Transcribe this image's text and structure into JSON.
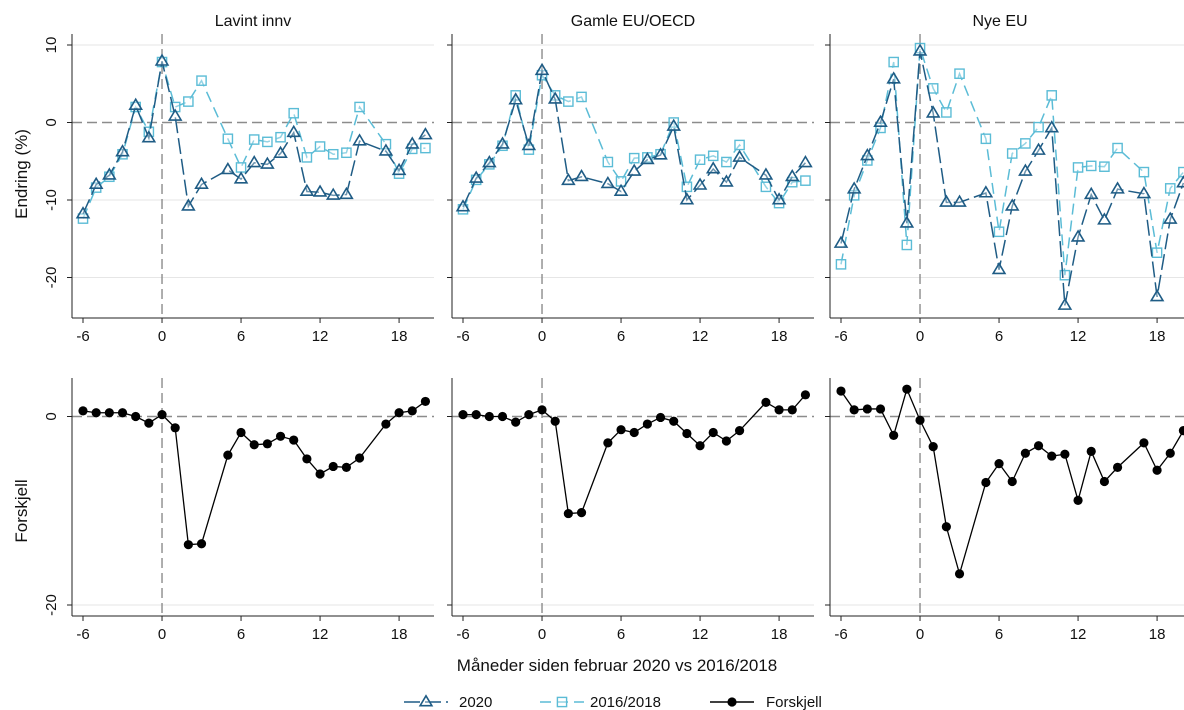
{
  "chart_data": {
    "type": "line",
    "xlabel": "Måneder siden februar 2020 vs 2016/2018",
    "top_ylabel": "Endring (%)",
    "bottom_ylabel": "Forskjell",
    "x_ticks": [
      "-6",
      "0",
      "6",
      "12",
      "18"
    ],
    "top_yticks": [
      {
        "value": 10,
        "label": "10"
      },
      {
        "value": 0,
        "label": "0"
      },
      {
        "value": -10,
        "label": "-10"
      },
      {
        "value": -20,
        "label": "-20"
      }
    ],
    "bottom_yticks": [
      {
        "value": 0,
        "label": "0"
      },
      {
        "value": -20,
        "label": "-20"
      }
    ],
    "top_ylim": [
      -25,
      11
    ],
    "bottom_ylim": [
      -21,
      4
    ],
    "xlim": [
      -7,
      21
    ],
    "grid": true,
    "legend_position": "bottom",
    "legend": [
      {
        "label": "2020",
        "key": "s2020"
      },
      {
        "label": "2016/2018",
        "key": "s1618"
      },
      {
        "label": "Forskjell",
        "key": "diff"
      }
    ],
    "colors": {
      "s2020": "#1f5c85",
      "s1618": "#5bbcd6",
      "diff": "#000000",
      "grid": "#e6e6e6",
      "refline": "#8c8c8c"
    },
    "panels": [
      {
        "title": "Lavint innv",
        "s2020": {
          "x": [
            -6,
            -5,
            -4,
            -3,
            -2,
            -1,
            0,
            1,
            2,
            3,
            5,
            6,
            7,
            8,
            9,
            10,
            11,
            12,
            13,
            14,
            15,
            17,
            18,
            19,
            20
          ],
          "y": [
            -11.8,
            -8.0,
            -6.8,
            -3.8,
            2.2,
            -2.0,
            7.9,
            0.8,
            -10.8,
            -8.0,
            -6.1,
            -7.3,
            -5.2,
            -5.4,
            -4.0,
            -1.3,
            -8.9,
            -9.0,
            -9.4,
            -9.3,
            -2.4,
            -3.7,
            -6.2,
            -2.8,
            -1.6
          ]
        },
        "s1618": {
          "x": [
            -6,
            -5,
            -4,
            -3,
            -2,
            -1,
            0,
            1,
            2,
            3,
            5,
            6,
            7,
            8,
            9,
            10,
            11,
            12,
            13,
            14,
            15,
            17,
            18,
            19,
            20
          ],
          "y": [
            -12.4,
            -8.4,
            -7.0,
            -4.1,
            2.0,
            -1.2,
            7.8,
            2.0,
            2.7,
            5.4,
            -2.1,
            -5.8,
            -2.2,
            -2.5,
            -1.9,
            1.2,
            -4.5,
            -3.1,
            -4.1,
            -3.9,
            2.0,
            -2.8,
            -6.6,
            -3.4,
            -3.3
          ]
        },
        "diff": {
          "x": [
            -6,
            -5,
            -4,
            -3,
            -2,
            -1,
            0,
            1,
            2,
            3,
            5,
            6,
            7,
            8,
            9,
            10,
            11,
            12,
            13,
            14,
            15,
            17,
            18,
            19,
            20
          ],
          "y": [
            0.6,
            0.4,
            0.4,
            0.4,
            0.0,
            -0.7,
            0.2,
            -1.2,
            -13.6,
            -13.5,
            -4.1,
            -1.7,
            -3.0,
            -2.9,
            -2.1,
            -2.5,
            -4.5,
            -6.1,
            -5.3,
            -5.4,
            -4.4,
            -0.8,
            0.4,
            0.6,
            1.6
          ]
        }
      },
      {
        "title": "Gamle EU/OECD",
        "s2020": {
          "x": [
            -6,
            -5,
            -4,
            -3,
            -2,
            -1,
            0,
            1,
            2,
            3,
            5,
            6,
            7,
            8,
            9,
            10,
            11,
            12,
            13,
            14,
            15,
            17,
            18,
            19,
            20
          ],
          "y": [
            -10.9,
            -7.2,
            -5.2,
            -2.8,
            2.9,
            -3.0,
            6.7,
            3.0,
            -7.5,
            -7.0,
            -7.9,
            -8.9,
            -6.3,
            -4.8,
            -4.2,
            -0.5,
            -10.0,
            -8.1,
            -6.0,
            -7.7,
            -4.5,
            -6.8,
            -10.0,
            -7.0,
            -5.2
          ]
        },
        "s1618": {
          "x": [
            -6,
            -5,
            -4,
            -3,
            -2,
            -1,
            0,
            1,
            2,
            3,
            5,
            6,
            7,
            8,
            9,
            10,
            11,
            12,
            13,
            14,
            15,
            17,
            18,
            19,
            20
          ],
          "y": [
            -11.2,
            -7.4,
            -5.4,
            -3.0,
            3.5,
            -3.5,
            6.1,
            3.5,
            2.7,
            3.3,
            -5.1,
            -7.6,
            -4.6,
            -4.5,
            -4.1,
            0.0,
            -8.3,
            -4.8,
            -4.3,
            -5.1,
            -2.9,
            -8.3,
            -10.4,
            -7.7,
            -7.5
          ]
        },
        "diff": {
          "x": [
            -6,
            -5,
            -4,
            -3,
            -2,
            -1,
            0,
            1,
            2,
            3,
            5,
            6,
            7,
            8,
            9,
            10,
            11,
            12,
            13,
            14,
            15,
            17,
            18,
            19,
            20
          ],
          "y": [
            0.2,
            0.2,
            0.0,
            0.0,
            -0.6,
            0.2,
            0.7,
            -0.5,
            -10.3,
            -10.2,
            -2.8,
            -1.4,
            -1.7,
            -0.8,
            -0.1,
            -0.5,
            -1.8,
            -3.1,
            -1.7,
            -2.6,
            -1.5,
            1.5,
            0.7,
            0.7,
            2.3
          ]
        }
      },
      {
        "title": "Nye EU",
        "s2020": {
          "x": [
            -6,
            -5,
            -4,
            -3,
            -2,
            -1,
            0,
            1,
            2,
            3,
            5,
            6,
            7,
            8,
            9,
            10,
            11,
            12,
            13,
            14,
            15,
            17,
            18,
            19,
            20
          ],
          "y": [
            -15.6,
            -8.6,
            -4.3,
            0.0,
            5.6,
            -13.0,
            9.2,
            1.2,
            -10.3,
            -10.3,
            -9.1,
            -19.0,
            -10.8,
            -6.3,
            -3.6,
            -0.7,
            -23.6,
            -14.8,
            -9.3,
            -12.6,
            -8.6,
            -9.2,
            -22.5,
            -12.5,
            -7.8
          ]
        },
        "s1618": {
          "x": [
            -6,
            -5,
            -4,
            -3,
            -2,
            -1,
            0,
            1,
            2,
            3,
            5,
            6,
            7,
            8,
            9,
            10,
            11,
            12,
            13,
            14,
            15,
            17,
            18,
            19,
            20
          ],
          "y": [
            -18.3,
            -9.4,
            -4.9,
            -0.7,
            7.8,
            -15.8,
            9.6,
            4.4,
            1.3,
            6.3,
            -2.1,
            -14.1,
            -4.0,
            -2.7,
            -0.6,
            3.5,
            -19.7,
            -5.8,
            -5.6,
            -5.7,
            -3.3,
            -6.4,
            -16.8,
            -8.5,
            -6.4
          ]
        },
        "diff": {
          "x": [
            -6,
            -5,
            -4,
            -3,
            -2,
            -1,
            0,
            1,
            2,
            3,
            5,
            6,
            7,
            8,
            9,
            10,
            11,
            12,
            13,
            14,
            15,
            17,
            18,
            19,
            20
          ],
          "y": [
            2.7,
            0.7,
            0.8,
            0.8,
            -2.0,
            2.9,
            -0.4,
            -3.2,
            -11.7,
            -16.7,
            -7.0,
            -5.0,
            -6.9,
            -3.9,
            -3.1,
            -4.2,
            -4.0,
            -8.9,
            -3.7,
            -6.9,
            -5.4,
            -2.8,
            -5.7,
            -3.9,
            -1.5
          ]
        }
      }
    ]
  }
}
